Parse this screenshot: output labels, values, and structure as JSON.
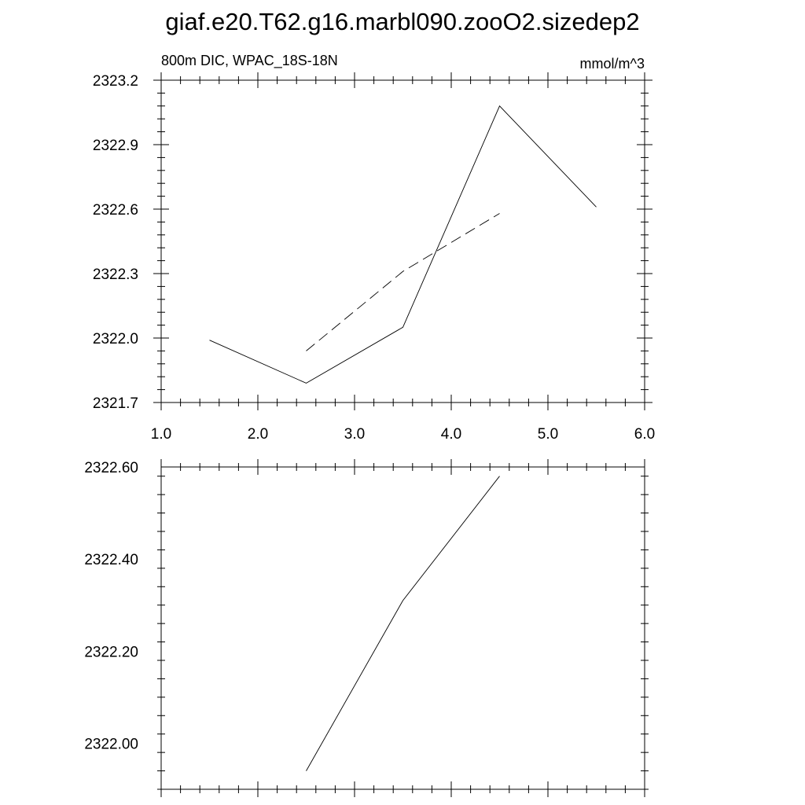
{
  "title": "giaf.e20.T62.g16.marbl090.zooO2.sizedep2",
  "chart_data": [
    {
      "type": "line",
      "left_string": "800m DIC, WPAC_18S-18N",
      "right_string": "mmol/m^3",
      "xlim": [
        1.0,
        6.0
      ],
      "ylim": [
        2321.7,
        2323.2
      ],
      "x_ticks": [
        "1.0",
        "2.0",
        "3.0",
        "4.0",
        "5.0",
        "6.0"
      ],
      "y_ticks": [
        "2321.7",
        "2322.0",
        "2322.3",
        "2322.6",
        "2322.9",
        "2323.2"
      ],
      "series": [
        {
          "style": "solid",
          "x": [
            1.5,
            2.5,
            3.5,
            4.5,
            5.5
          ],
          "y": [
            2321.99,
            2321.79,
            2322.05,
            2323.08,
            2322.61
          ]
        },
        {
          "style": "dashed",
          "x": [
            2.5,
            3.5,
            4.5
          ],
          "y": [
            2321.94,
            2322.31,
            2322.58
          ]
        }
      ]
    },
    {
      "type": "line",
      "xlim": [
        1.0,
        6.0
      ],
      "ylim": [
        2321.9,
        2322.6
      ],
      "y_ticks": [
        "2322.00",
        "2322.20",
        "2322.40",
        "2322.60"
      ],
      "series": [
        {
          "style": "solid",
          "x": [
            2.5,
            3.5,
            4.5
          ],
          "y": [
            2321.94,
            2322.31,
            2322.58
          ]
        }
      ]
    }
  ]
}
